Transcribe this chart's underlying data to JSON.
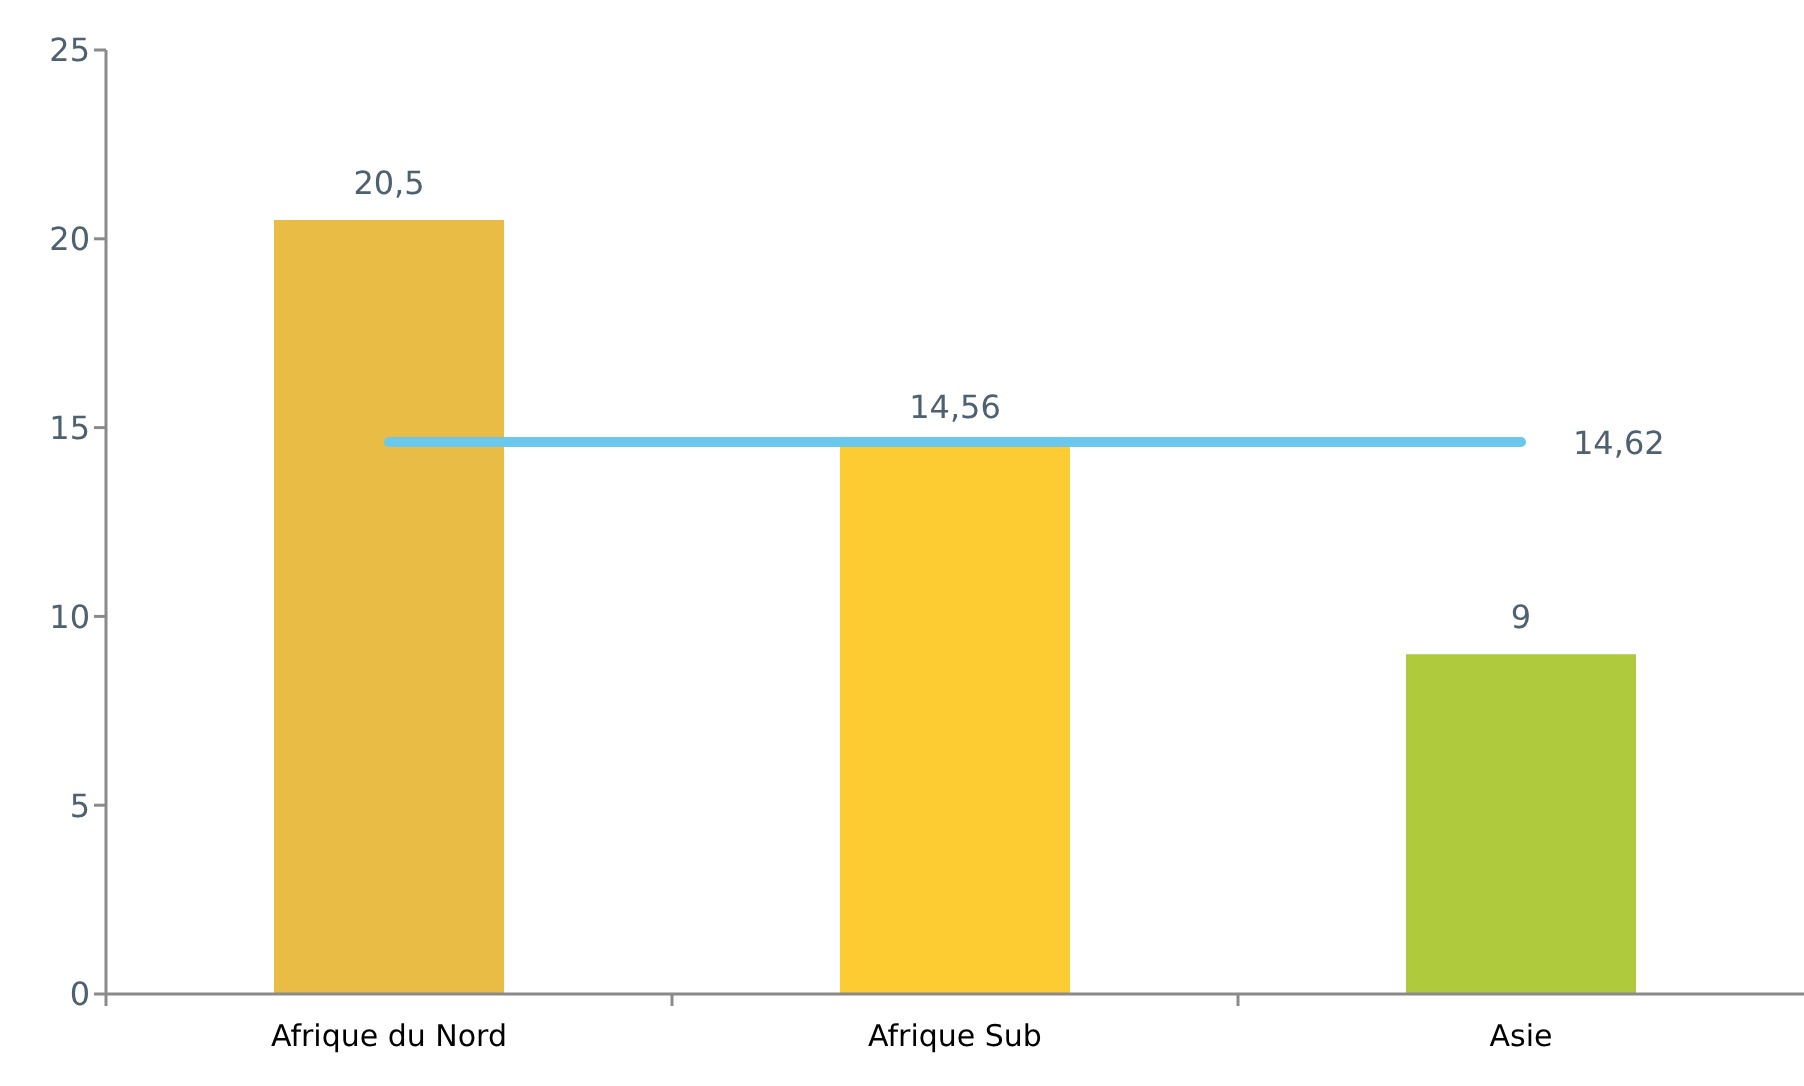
{
  "chart_data": {
    "type": "bar",
    "categories": [
      "Afrique du Nord",
      "Afrique Sub",
      "Asie"
    ],
    "series": [
      {
        "colors": [
          "#e8bc45",
          "#fdcc33",
          "#b0ca3e"
        ],
        "values": [
          20.5,
          14.56,
          9
        ],
        "value_labels": [
          "20,5",
          "14,56",
          "9"
        ]
      },
      {
        "type": "line",
        "color": "#6ac8ec",
        "values": [
          14.62,
          14.62,
          14.62
        ],
        "value_labels": [
          null,
          null,
          "14,62"
        ],
        "marker": "none"
      }
    ],
    "ylim": [
      0,
      25
    ],
    "yticks": [
      0,
      5,
      10,
      15,
      20,
      25
    ]
  }
}
